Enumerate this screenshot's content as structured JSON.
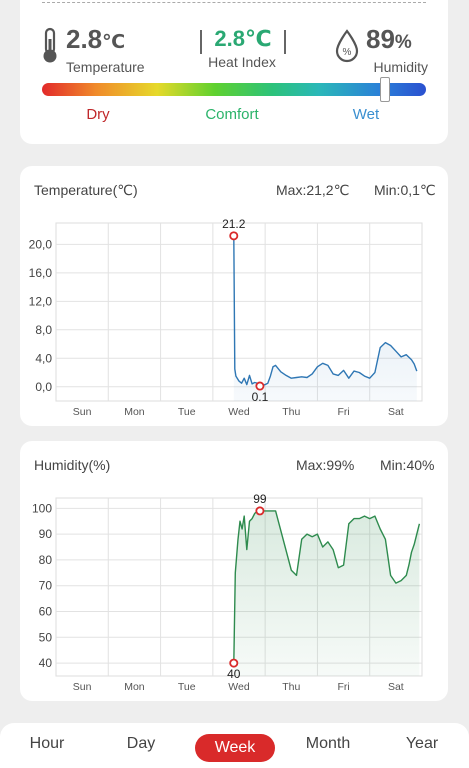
{
  "summary": {
    "temperature_value": "2.8",
    "temperature_unit": "℃",
    "temperature_label": "Temperature",
    "heat_index_value": "2.8℃",
    "heat_index_label": "Heat Index",
    "humidity_value": "89",
    "humidity_unit": "%",
    "humidity_label": "Humidity",
    "scale_labels": {
      "dry": "Dry",
      "comfort": "Comfort",
      "wet": "Wet"
    },
    "scale_level": 0.89,
    "colors": {
      "dry": "#c0282b",
      "comfort": "#2bb36a",
      "wet": "#3a8fd0",
      "heat_index": "#2aa873"
    }
  },
  "temperature_chart": {
    "title": "Temperature(℃)",
    "max_label": "Max:21,2℃",
    "min_label": "Min:0,1℃"
  },
  "humidity_chart": {
    "title": "Humidity(%)",
    "max_label": "Max:99%",
    "min_label": "Min:40%"
  },
  "tabs": [
    {
      "label": "Hour",
      "active": false
    },
    {
      "label": "Day",
      "active": false
    },
    {
      "label": "Week",
      "active": true
    },
    {
      "label": "Month",
      "active": false
    },
    {
      "label": "Year",
      "active": false
    }
  ],
  "chart_data": [
    {
      "type": "area",
      "title": "Temperature(℃)",
      "color": "#2f77b4",
      "categories": [
        "Sun",
        "Mon",
        "Tue",
        "Wed",
        "Thu",
        "Fri",
        "Sat"
      ],
      "xlim": [
        0,
        7
      ],
      "ylim": [
        -2,
        23
      ],
      "yticks": [
        "0,0",
        "4,0",
        "8,0",
        "12,0",
        "16,0",
        "20,0"
      ],
      "ytick_values": [
        0,
        4,
        8,
        12,
        16,
        20
      ],
      "x": [
        3.4,
        3.42,
        3.44,
        3.5,
        3.55,
        3.6,
        3.65,
        3.7,
        3.75,
        3.8,
        3.85,
        3.9,
        3.95,
        4.0,
        4.05,
        4.1,
        4.15,
        4.2,
        4.3,
        4.4,
        4.5,
        4.6,
        4.7,
        4.8,
        4.9,
        5.0,
        5.1,
        5.2,
        5.3,
        5.4,
        5.5,
        5.6,
        5.7,
        5.8,
        5.9,
        6.0,
        6.1,
        6.2,
        6.3,
        6.4,
        6.5,
        6.6,
        6.7,
        6.8,
        6.85,
        6.9
      ],
      "values": [
        21.2,
        2.5,
        1.5,
        0.8,
        0.5,
        1.2,
        0.3,
        1.6,
        0.4,
        0.6,
        0.5,
        0.1,
        0.2,
        0.3,
        0.5,
        1.5,
        2.8,
        3.0,
        2.1,
        1.6,
        1.2,
        1.3,
        1.4,
        1.3,
        1.8,
        2.8,
        3.3,
        3.0,
        1.8,
        1.6,
        2.3,
        1.2,
        2.2,
        2.0,
        1.5,
        1.2,
        2.0,
        5.5,
        6.2,
        5.8,
        5.0,
        4.2,
        4.5,
        3.8,
        3.2,
        2.2
      ],
      "annotations": [
        {
          "label": "21.2",
          "x": 3.4,
          "y": 21.2
        },
        {
          "label": "0.1",
          "x": 3.9,
          "y": 0.1
        }
      ]
    },
    {
      "type": "area",
      "title": "Humidity(%)",
      "color": "#2e8b4e",
      "categories": [
        "Sun",
        "Mon",
        "Tue",
        "Wed",
        "Thu",
        "Fri",
        "Sat"
      ],
      "xlim": [
        0,
        7
      ],
      "ylim": [
        35,
        104
      ],
      "yticks": [
        "40",
        "50",
        "60",
        "70",
        "80",
        "90",
        "100"
      ],
      "ytick_values": [
        40,
        50,
        60,
        70,
        80,
        90,
        100
      ],
      "x": [
        3.4,
        3.43,
        3.48,
        3.52,
        3.56,
        3.6,
        3.65,
        3.7,
        3.75,
        3.8,
        3.85,
        3.9,
        3.95,
        4.0,
        4.2,
        4.5,
        4.6,
        4.7,
        4.8,
        4.9,
        5.0,
        5.1,
        5.2,
        5.3,
        5.4,
        5.5,
        5.6,
        5.7,
        5.8,
        5.9,
        6.0,
        6.1,
        6.2,
        6.3,
        6.4,
        6.5,
        6.6,
        6.7,
        6.75,
        6.8,
        6.85,
        6.9,
        6.95
      ],
      "values": [
        40,
        75,
        88,
        95,
        92,
        97,
        84,
        95,
        96,
        98,
        99,
        98,
        99,
        99,
        99,
        76,
        74,
        88,
        90,
        89,
        90,
        85,
        87,
        84,
        77,
        78,
        94,
        96,
        96,
        97,
        96,
        97,
        92,
        88,
        74,
        71,
        72,
        74,
        78,
        83,
        86,
        90,
        94
      ],
      "annotations": [
        {
          "label": "99",
          "x": 3.9,
          "y": 99
        },
        {
          "label": "40",
          "x": 3.4,
          "y": 40
        }
      ]
    }
  ]
}
